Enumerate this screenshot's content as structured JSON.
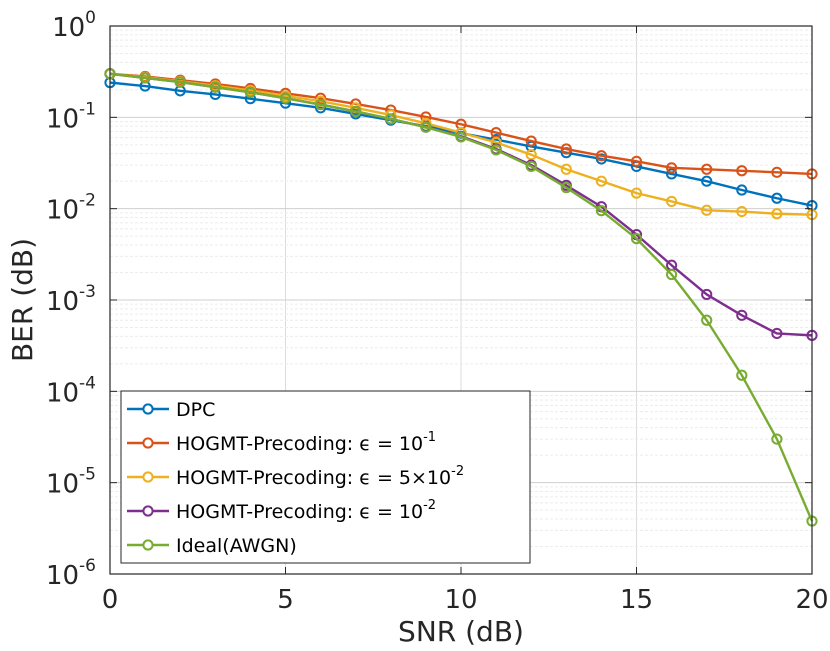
{
  "chart_data": {
    "type": "line",
    "xlabel": "SNR (dB)",
    "ylabel": "BER (dB)",
    "xlim": [
      0,
      20
    ],
    "ylim": [
      1e-06,
      1
    ],
    "yscale": "log",
    "grid": true,
    "legend_position": "bottom-left",
    "xticks": [
      0,
      5,
      10,
      15,
      20
    ],
    "yticks": [
      {
        "value": 1,
        "base": "10",
        "exp": "0"
      },
      {
        "value": 0.1,
        "base": "10",
        "exp": "-1"
      },
      {
        "value": 0.01,
        "base": "10",
        "exp": "-2"
      },
      {
        "value": 0.001,
        "base": "10",
        "exp": "-3"
      },
      {
        "value": 0.0001,
        "base": "10",
        "exp": "-4"
      },
      {
        "value": 1e-05,
        "base": "10",
        "exp": "-5"
      },
      {
        "value": 1e-06,
        "base": "10",
        "exp": "-6"
      }
    ],
    "x": [
      0,
      1,
      2,
      3,
      4,
      5,
      6,
      7,
      8,
      9,
      10,
      11,
      12,
      13,
      14,
      15,
      16,
      17,
      18,
      19,
      20
    ],
    "series": [
      {
        "name": "DPC",
        "label_main": "DPC",
        "label_sup": "",
        "label_tail": "",
        "color": "#0072BD",
        "values": [
          0.24,
          0.22,
          0.195,
          0.178,
          0.16,
          0.143,
          0.127,
          0.109,
          0.093,
          0.08,
          0.067,
          0.057,
          0.048,
          0.041,
          0.035,
          0.029,
          0.024,
          0.02,
          0.016,
          0.013,
          0.0108
        ]
      },
      {
        "name": "HOGMT-Precoding: ε = 10^-1",
        "label_main": "HOGMT-Precoding: ϵ = 10",
        "label_sup": "-1",
        "label_tail": "",
        "color": "#D95319",
        "values": [
          0.3,
          0.28,
          0.255,
          0.232,
          0.207,
          0.183,
          0.162,
          0.14,
          0.12,
          0.101,
          0.084,
          0.068,
          0.055,
          0.045,
          0.038,
          0.033,
          0.028,
          0.027,
          0.026,
          0.025,
          0.024
        ]
      },
      {
        "name": "HOGMT-Precoding: ε = 5×10^-2",
        "label_main": "HOGMT-Precoding: ϵ = 5×10",
        "label_sup": "-2",
        "label_tail": "",
        "color": "#EDB120",
        "values": [
          0.3,
          0.275,
          0.248,
          0.222,
          0.197,
          0.172,
          0.15,
          0.127,
          0.106,
          0.086,
          0.068,
          0.053,
          0.039,
          0.027,
          0.02,
          0.0148,
          0.012,
          0.0096,
          0.0093,
          0.0088,
          0.0086
        ]
      },
      {
        "name": "HOGMT-Precoding: ε = 10^-2",
        "label_main": "HOGMT-Precoding: ϵ = 10",
        "label_sup": "-2",
        "label_tail": "",
        "color": "#7E2F8E",
        "values": [
          0.3,
          0.27,
          0.243,
          0.214,
          0.188,
          0.162,
          0.138,
          0.116,
          0.096,
          0.078,
          0.062,
          0.045,
          0.03,
          0.018,
          0.0105,
          0.0052,
          0.0024,
          0.00115,
          0.00068,
          0.00043,
          0.00041
        ]
      },
      {
        "name": "Ideal(AWGN)",
        "label_main": "Ideal(AWGN)",
        "label_sup": "",
        "label_tail": "",
        "color": "#77AC30",
        "values": [
          0.3,
          0.27,
          0.243,
          0.214,
          0.188,
          0.162,
          0.138,
          0.116,
          0.096,
          0.078,
          0.061,
          0.044,
          0.029,
          0.017,
          0.0095,
          0.0047,
          0.0019,
          0.0006,
          0.00015,
          3e-05,
          3.8e-06
        ]
      }
    ]
  }
}
